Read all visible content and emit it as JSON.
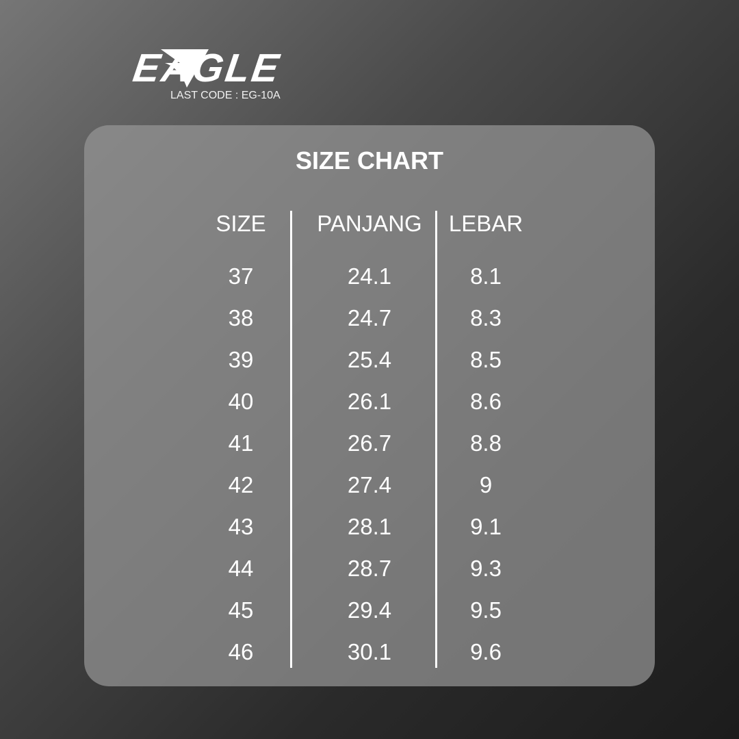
{
  "brand": {
    "name": "EAGLE",
    "last_code": "LAST CODE : EG-10A"
  },
  "chart_data": {
    "type": "table",
    "title": "SIZE CHART",
    "columns": [
      "SIZE",
      "PANJANG",
      "LEBAR"
    ],
    "rows": [
      [
        "37",
        "24.1",
        "8.1"
      ],
      [
        "38",
        "24.7",
        "8.3"
      ],
      [
        "39",
        "25.4",
        "8.5"
      ],
      [
        "40",
        "26.1",
        "8.6"
      ],
      [
        "41",
        "26.7",
        "8.8"
      ],
      [
        "42",
        "27.4",
        "9"
      ],
      [
        "43",
        "28.1",
        "9.1"
      ],
      [
        "44",
        "28.7",
        "9.3"
      ],
      [
        "45",
        "29.4",
        "9.5"
      ],
      [
        "46",
        "30.1",
        "9.6"
      ]
    ]
  }
}
